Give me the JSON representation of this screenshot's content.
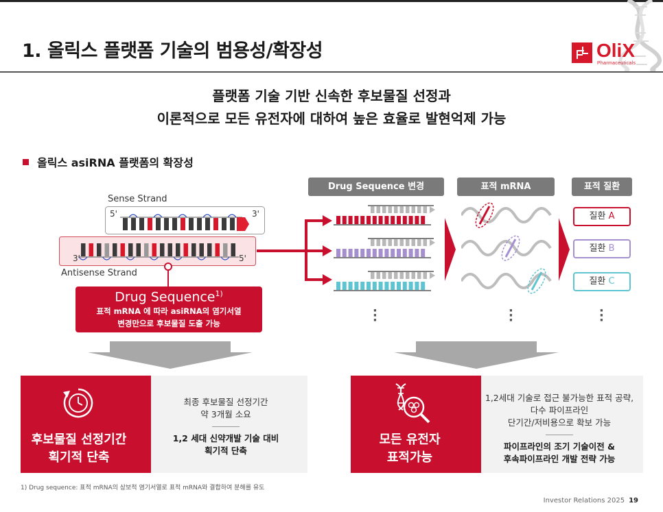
{
  "header": {
    "title": "1. 올릭스 플랫폼 기술의 범용성/확장성",
    "logo_text": "OliX",
    "logo_sub": "Pharmaceuticals"
  },
  "headline": {
    "line1": "플랫폼 기술 기반 신속한 후보물질 선정과",
    "line2": "이론적으로 모든 유전자에 대하여 높은 효율로 발현억제 가능"
  },
  "section": {
    "bullet": "올릭스 asiRNA 플랫폼의 확장성"
  },
  "diagram": {
    "sense_label": "Sense Strand",
    "antisense_label": "Antisense Strand",
    "sense_5": "5'",
    "sense_3": "3'",
    "anti_3": "3'",
    "anti_5": "5'",
    "drug_title": "Drug Sequence",
    "drug_sup": "1)",
    "drug_desc_1": "표적 mRNA 에 따라 asiRNA의 염기서열",
    "drug_desc_2": "변경만으로 후보물질 도출 가능",
    "col_headers": [
      "Drug Sequence 변경",
      "표적 mRNA",
      "표적 질환"
    ],
    "diseases": [
      {
        "prefix": "질환 ",
        "letter": "A",
        "color": "#c8102e"
      },
      {
        "prefix": "질환 ",
        "letter": "B",
        "color": "#a58fcf"
      },
      {
        "prefix": "질환 ",
        "letter": "C",
        "color": "#5ec4d1"
      }
    ],
    "colors": {
      "red": "#c8102e",
      "purple": "#a58fcf",
      "cyan": "#5ec4d1",
      "gray": "#7a7a7a"
    }
  },
  "panels": {
    "left": {
      "label_1": "후보물질 선정기간",
      "label_2": "획기적 단축",
      "text_1": "최종 후보물질 선정기간",
      "text_2": "약 3개월 소요",
      "bold_1": "1,2 세대 신약개발 기술 대비",
      "bold_2": "획기적 단축",
      "icon": "clock-icon"
    },
    "right": {
      "label_1": "모든 유전자",
      "label_2": "표적가능",
      "text_1": "1,2세대 기술로 접근 불가능한 표적 공략,",
      "text_2": "다수 파이프라인",
      "text_3": "단기간/저비용으로 확보 가능",
      "bold_1": "파이프라인의 조기 기술이전 &",
      "bold_2": "후속파이프라인 개발 전략 가능",
      "icon": "dna-magnifier-icon"
    }
  },
  "footnote": "1) Drug sequence: 표적 mRNA의 상보적 염기서열로 표적 mRNA와 결합하여 분해를 유도",
  "footer": {
    "label": "Investor Relations 2025",
    "page": "19"
  }
}
